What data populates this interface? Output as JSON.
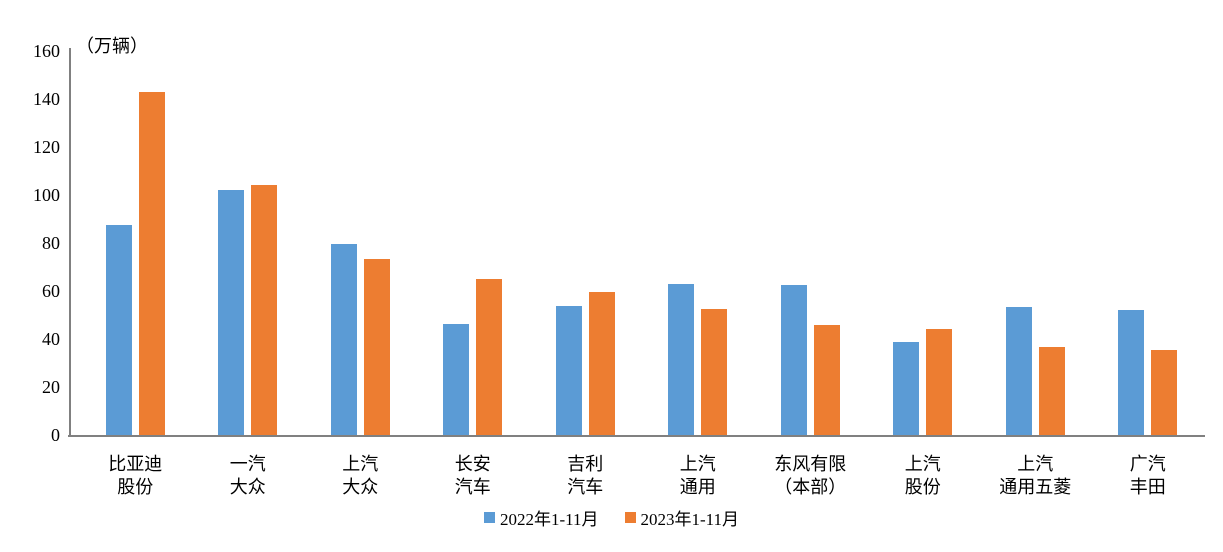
{
  "chart_data": {
    "type": "bar",
    "title": "",
    "unit_label": "（万辆）",
    "xlabel": "",
    "ylabel": "万辆",
    "ylim": [
      0,
      160
    ],
    "ytick_step": 20,
    "grid": false,
    "legend_position": "bottom-center",
    "axis_color": "#808080",
    "text_color": "#000000",
    "categories": [
      [
        "比亚迪",
        "股份"
      ],
      [
        "一汽",
        "大众"
      ],
      [
        "上汽",
        "大众"
      ],
      [
        "长安",
        "汽车"
      ],
      [
        "吉利",
        "汽车"
      ],
      [
        "上汽",
        "通用"
      ],
      [
        "东风有限",
        "（本部）"
      ],
      [
        "上汽",
        "股份"
      ],
      [
        "上汽",
        "通用五菱"
      ],
      [
        "广汽",
        "丰田"
      ]
    ],
    "series": [
      {
        "name": "2022年1-11月",
        "color": "#5B9BD5",
        "values": [
          87.5,
          102.0,
          79.4,
          46.4,
          53.6,
          63.1,
          62.5,
          38.9,
          53.3,
          51.9
        ]
      },
      {
        "name": "2023年1-11月",
        "color": "#ED7D31",
        "values": [
          142.8,
          104.2,
          73.5,
          64.8,
          59.5,
          52.4,
          45.8,
          44.0,
          36.7,
          35.3
        ]
      }
    ]
  }
}
